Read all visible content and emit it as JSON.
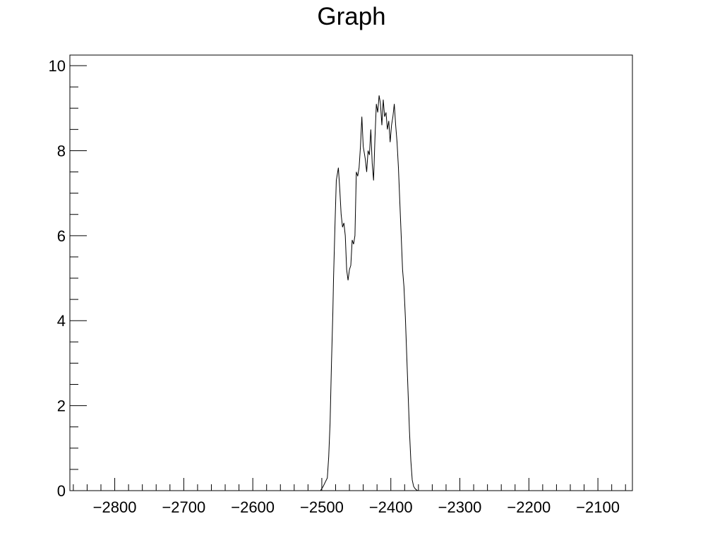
{
  "chart_data": {
    "type": "line",
    "title": "Graph",
    "xlabel": "",
    "ylabel": "",
    "xlim": [
      -2865,
      -2050
    ],
    "ylim": [
      0,
      10.25
    ],
    "x_ticks": [
      -2800,
      -2700,
      -2600,
      -2500,
      -2400,
      -2300,
      -2200,
      -2100
    ],
    "x_tick_labels": [
      "−2800",
      "−2700",
      "−2600",
      "−2500",
      "−2400",
      "−2300",
      "−2200",
      "−2100"
    ],
    "y_ticks": [
      0,
      2,
      4,
      6,
      8,
      10
    ],
    "y_tick_labels": [
      "0",
      "2",
      "4",
      "6",
      "8",
      "10"
    ],
    "grid": false,
    "legend": false,
    "line_color": "#000000",
    "series": [
      {
        "x": [
          -2502,
          -2498,
          -2495,
          -2492,
          -2490,
          -2488,
          -2486,
          -2484,
          -2483,
          -2481,
          -2479,
          -2476,
          -2474,
          -2472,
          -2470,
          -2468,
          -2466,
          -2464,
          -2462,
          -2460,
          -2458,
          -2456,
          -2454,
          -2452,
          -2450,
          -2448,
          -2446,
          -2444,
          -2442,
          -2440,
          -2437,
          -2435,
          -2433,
          -2431,
          -2429,
          -2427,
          -2425,
          -2423,
          -2421,
          -2419,
          -2417,
          -2415,
          -2413,
          -2411,
          -2409,
          -2407,
          -2405,
          -2403,
          -2401,
          -2399,
          -2397,
          -2395,
          -2393,
          -2391,
          -2389,
          -2387,
          -2385,
          -2383,
          -2381,
          -2379,
          -2377,
          -2375,
          -2373,
          -2371,
          -2369,
          -2367,
          -2365,
          -2363,
          -2361,
          -2359,
          -2357,
          -2355,
          -2353,
          -2351,
          -2349,
          -2347,
          -2345,
          -2343,
          -2340,
          -2337,
          -2334
        ],
        "y": [
          0.0,
          0.1,
          0.2,
          0.3,
          0.8,
          1.6,
          3.0,
          4.2,
          5.0,
          6.2,
          7.3,
          7.6,
          7.1,
          6.5,
          6.2,
          6.3,
          6.0,
          5.2,
          4.95,
          5.2,
          5.3,
          5.9,
          5.8,
          6.0,
          7.5,
          7.4,
          7.6,
          8.1,
          8.8,
          8.1,
          7.8,
          7.5,
          8.0,
          7.9,
          8.5,
          7.7,
          7.3,
          8.3,
          9.1,
          8.9,
          9.3,
          9.1,
          8.6,
          9.2,
          8.8,
          8.9,
          8.5,
          8.7,
          8.2,
          8.6,
          8.8,
          9.1,
          8.6,
          8.2,
          7.6,
          6.8,
          6.0,
          5.2,
          4.8,
          4.1,
          3.2,
          2.3,
          1.4,
          0.7,
          0.25,
          0.1,
          0.05,
          0.02,
          0.0,
          0.0,
          0.0,
          0.0,
          0.0,
          0.0,
          0.0,
          0.0,
          0.0,
          0.0,
          0.0,
          0.0,
          0.0
        ]
      }
    ]
  }
}
